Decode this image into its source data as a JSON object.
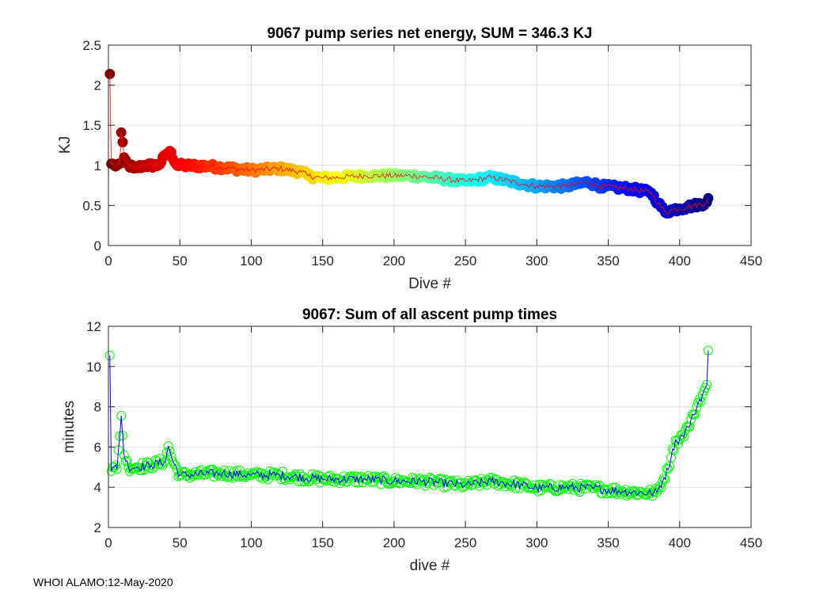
{
  "footer": "WHOI ALAMO:12-May-2020",
  "chart_data": [
    {
      "type": "scatter",
      "title": "9067 pump series net energy, SUM = 346.3 KJ",
      "xlabel": "Dive #",
      "ylabel": "KJ",
      "xlim": [
        0,
        450
      ],
      "ylim": [
        0,
        2.5
      ],
      "xticks": [
        0,
        50,
        100,
        150,
        200,
        250,
        300,
        350,
        400,
        450
      ],
      "yticks": [
        0,
        0.5,
        1,
        1.5,
        2,
        2.5
      ],
      "ytick_labels": [
        "0",
        "0.5",
        "1",
        "1.5",
        "2",
        "2.5"
      ],
      "marker_colormap": "jet (dark red at first dive to dark blue at last dive)",
      "line_color": "#ff0000",
      "grid": true,
      "anchors": [
        [
          1,
          2.14
        ],
        [
          2,
          1.02
        ],
        [
          4,
          1.0
        ],
        [
          6,
          1.0
        ],
        [
          8,
          1.02
        ],
        [
          9,
          1.41
        ],
        [
          11,
          1.1
        ],
        [
          13,
          1.02
        ],
        [
          18,
          0.96
        ],
        [
          25,
          1.0
        ],
        [
          35,
          1.0
        ],
        [
          41,
          1.15
        ],
        [
          43,
          1.18
        ],
        [
          48,
          1.0
        ],
        [
          70,
          0.99
        ],
        [
          100,
          0.94
        ],
        [
          120,
          0.96
        ],
        [
          135,
          0.92
        ],
        [
          140,
          0.87
        ],
        [
          150,
          0.84
        ],
        [
          180,
          0.87
        ],
        [
          215,
          0.87
        ],
        [
          250,
          0.8
        ],
        [
          268,
          0.85
        ],
        [
          290,
          0.77
        ],
        [
          300,
          0.74
        ],
        [
          320,
          0.74
        ],
        [
          336,
          0.79
        ],
        [
          345,
          0.74
        ],
        [
          365,
          0.71
        ],
        [
          380,
          0.66
        ],
        [
          385,
          0.53
        ],
        [
          390,
          0.41
        ],
        [
          395,
          0.45
        ],
        [
          400,
          0.46
        ],
        [
          405,
          0.48
        ],
        [
          410,
          0.5
        ],
        [
          418,
          0.53
        ],
        [
          420,
          0.59
        ]
      ],
      "count": 420
    },
    {
      "type": "line",
      "title": "9067: Sum of all ascent pump times",
      "xlabel": "dive #",
      "ylabel": "minutes",
      "xlim": [
        0,
        450
      ],
      "ylim": [
        2,
        12
      ],
      "xticks": [
        0,
        50,
        100,
        150,
        200,
        250,
        300,
        350,
        400,
        450
      ],
      "yticks": [
        2,
        4,
        6,
        8,
        10,
        12
      ],
      "ytick_labels": [
        "2",
        "4",
        "6",
        "8",
        "10",
        "12"
      ],
      "marker_color": "#00ff00",
      "line_color": "#0000ff",
      "grid": true,
      "anchors": [
        [
          1,
          10.55
        ],
        [
          2,
          4.8
        ],
        [
          4,
          5.0
        ],
        [
          6,
          4.9
        ],
        [
          9,
          7.55
        ],
        [
          11,
          5.6
        ],
        [
          14,
          5.0
        ],
        [
          20,
          5.0
        ],
        [
          30,
          5.1
        ],
        [
          40,
          5.3
        ],
        [
          42,
          6.05
        ],
        [
          45,
          5.3
        ],
        [
          50,
          4.6
        ],
        [
          80,
          4.7
        ],
        [
          100,
          4.6
        ],
        [
          120,
          4.6
        ],
        [
          150,
          4.4
        ],
        [
          180,
          4.4
        ],
        [
          200,
          4.3
        ],
        [
          220,
          4.3
        ],
        [
          250,
          4.1
        ],
        [
          268,
          4.3
        ],
        [
          290,
          4.1
        ],
        [
          300,
          3.95
        ],
        [
          320,
          4.0
        ],
        [
          340,
          3.95
        ],
        [
          360,
          3.8
        ],
        [
          380,
          3.7
        ],
        [
          384,
          3.75
        ],
        [
          388,
          4.3
        ],
        [
          392,
          4.9
        ],
        [
          395,
          5.9
        ],
        [
          398,
          6.3
        ],
        [
          402,
          6.6
        ],
        [
          406,
          7.0
        ],
        [
          410,
          7.6
        ],
        [
          413,
          8.2
        ],
        [
          416,
          8.6
        ],
        [
          419,
          9.1
        ],
        [
          420,
          10.8
        ]
      ],
      "count": 420
    }
  ]
}
